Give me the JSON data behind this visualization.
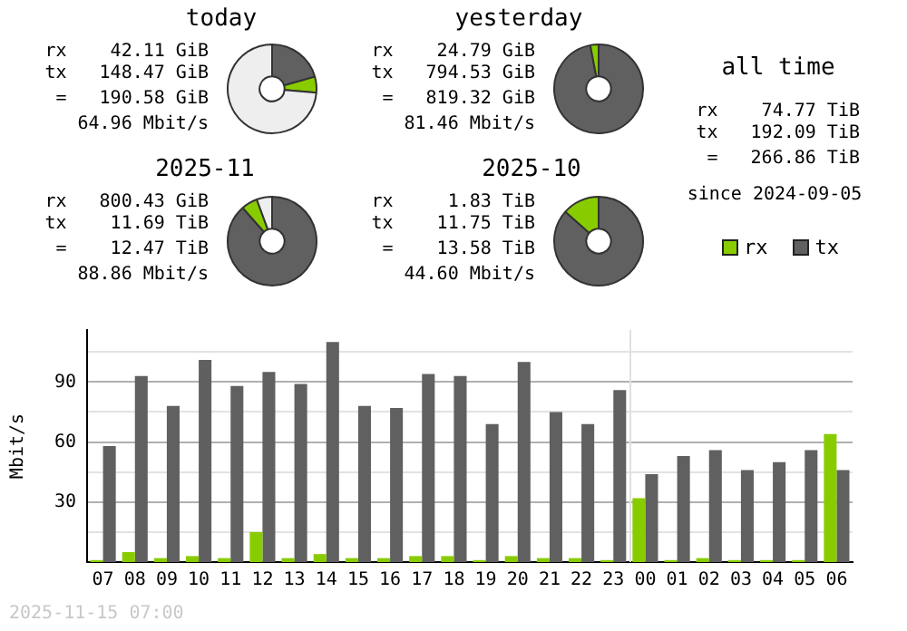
{
  "chart_data": [
    {
      "type": "donut",
      "title": "today",
      "categories": [
        null,
        null,
        null
      ],
      "values": [
        20.6,
        5.8,
        73.6
      ],
      "colors": [
        "#606060",
        "#88cc00",
        "#eeeeee"
      ],
      "annotations": [
        "rx    42.11 GiB",
        "tx   148.47 GiB",
        "=   190.58 GiB",
        "64.96 Mbit/s"
      ]
    },
    {
      "type": "donut",
      "title": "yesterday",
      "categories": [
        null,
        null
      ],
      "values": [
        97,
        3
      ],
      "colors": [
        "#606060",
        "#88cc00"
      ],
      "annotations": [
        "rx    24.79 GiB",
        "tx   794.53 GiB",
        "=   819.32 GiB",
        "81.46 Mbit/s"
      ]
    },
    {
      "type": "other",
      "title": "all time",
      "annotations": [
        "rx    74.77 TiB",
        "tx   192.09 TiB",
        "=   266.86 TiB",
        "since 2024-09-05"
      ]
    },
    {
      "type": "donut",
      "title": "2025-11",
      "categories": [
        null,
        null,
        null
      ],
      "values": [
        88.5,
        5.9,
        5.6
      ],
      "colors": [
        "#606060",
        "#88cc00",
        "#eeeeee"
      ],
      "annotations": [
        "rx   800.43 GiB",
        "tx    11.69 TiB",
        "=    12.47 TiB",
        "88.86 Mbit/s"
      ]
    },
    {
      "type": "donut",
      "title": "2025-10",
      "categories": [
        null,
        null
      ],
      "values": [
        86.5,
        13.5
      ],
      "colors": [
        "#606060",
        "#88cc00"
      ],
      "annotations": [
        "rx     1.83 TiB",
        "tx    11.75 TiB",
        "=    13.58 TiB",
        "44.60 Mbit/s"
      ]
    },
    {
      "type": "bar",
      "ylabel": "Mbit/s",
      "categories": [
        "07",
        "08",
        "09",
        "10",
        "11",
        "12",
        "13",
        "14",
        "15",
        "16",
        "17",
        "18",
        "19",
        "20",
        "21",
        "22",
        "23",
        "00",
        "01",
        "02",
        "03",
        "04",
        "05",
        "06"
      ],
      "series": [
        {
          "name": "rx",
          "color": "#88cc00",
          "values": [
            1,
            5,
            2,
            3,
            2,
            15,
            2,
            4,
            2,
            2,
            3,
            3,
            1,
            3,
            2,
            2,
            1,
            32,
            1,
            2,
            1,
            1,
            1,
            64
          ]
        },
        {
          "name": "tx",
          "color": "#606060",
          "values": [
            58,
            93,
            78,
            101,
            88,
            95,
            89,
            110,
            78,
            77,
            94,
            93,
            69,
            100,
            75,
            69,
            86,
            44,
            53,
            56,
            46,
            50,
            56,
            46
          ]
        }
      ],
      "ylim": [
        0,
        116
      ],
      "yticks": [
        {
          "value": 0,
          "label": null
        },
        {
          "value": 15,
          "label": null
        },
        30,
        {
          "value": 45,
          "label": null
        },
        60,
        {
          "value": 75,
          "label": null
        },
        90,
        {
          "value": 105,
          "label": null
        }
      ],
      "grid": "y",
      "legend": "top right",
      "ref_lines": [
        {
          "axis": "x",
          "value": "00",
          "color": "#e0e0e0"
        }
      ],
      "annotations": [
        "2025-11-15 07:00"
      ]
    }
  ]
}
